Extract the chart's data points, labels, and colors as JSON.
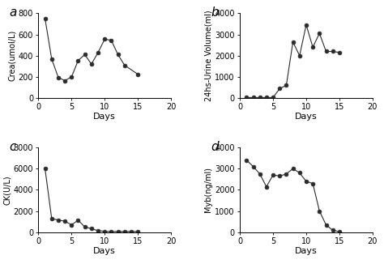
{
  "panel_a": {
    "label": "a",
    "x": [
      1,
      2,
      3,
      4,
      5,
      6,
      7,
      8,
      9,
      10,
      11,
      12,
      13,
      15
    ],
    "y": [
      750,
      370,
      195,
      165,
      200,
      355,
      410,
      320,
      430,
      555,
      545,
      410,
      310,
      225
    ],
    "ylabel": "Crea(umol/L)",
    "xlabel": "Days",
    "ylim": [
      0,
      800
    ],
    "xlim": [
      0,
      20
    ],
    "yticks": [
      0,
      200,
      400,
      600,
      800
    ],
    "xticks": [
      0,
      5,
      10,
      15,
      20
    ]
  },
  "panel_b": {
    "label": "b",
    "x": [
      1,
      2,
      3,
      4,
      5,
      6,
      7,
      8,
      9,
      10,
      11,
      12,
      13,
      14,
      15
    ],
    "y": [
      30,
      30,
      30,
      30,
      30,
      450,
      600,
      2650,
      2000,
      3450,
      2400,
      3050,
      2200,
      2200,
      2150
    ],
    "ylabel": "24hs-Urine Volume(ml)",
    "xlabel": "Days",
    "ylim": [
      0,
      4000
    ],
    "xlim": [
      0,
      20
    ],
    "yticks": [
      0,
      1000,
      2000,
      3000,
      4000
    ],
    "xticks": [
      0,
      5,
      10,
      15,
      20
    ]
  },
  "panel_c": {
    "label": "c",
    "x": [
      1,
      2,
      3,
      4,
      5,
      6,
      7,
      8,
      9,
      10,
      11,
      12,
      13,
      14,
      15
    ],
    "y": [
      6000,
      1300,
      1150,
      1050,
      700,
      1150,
      500,
      350,
      150,
      100,
      80,
      80,
      80,
      80,
      80
    ],
    "ylabel": "CK(U/L)",
    "xlabel": "Days",
    "ylim": [
      0,
      8000
    ],
    "xlim": [
      0,
      20
    ],
    "yticks": [
      0,
      2000,
      4000,
      6000,
      8000
    ],
    "xticks": [
      0,
      5,
      10,
      15,
      20
    ]
  },
  "panel_d": {
    "label": "d",
    "x": [
      1,
      2,
      3,
      4,
      5,
      6,
      7,
      8,
      9,
      10,
      11,
      12,
      13,
      14,
      15
    ],
    "y": [
      3400,
      3100,
      2750,
      2150,
      2700,
      2650,
      2750,
      3000,
      2800,
      2400,
      2300,
      1000,
      350,
      100,
      30
    ],
    "ylabel": "Myb(ng/ml)",
    "xlabel": "Days",
    "ylim": [
      0,
      4000
    ],
    "xlim": [
      0,
      20
    ],
    "yticks": [
      0,
      1000,
      2000,
      3000,
      4000
    ],
    "xticks": [
      0,
      5,
      10,
      15,
      20
    ]
  },
  "line_color": "#2b2b2b",
  "marker": "o",
  "marker_size": 3.5,
  "marker_face": "#2b2b2b",
  "background": "#ffffff",
  "ylabel_fontsize": 7,
  "xlabel_fontsize": 8,
  "tick_fontsize": 7,
  "panel_label_fontsize": 11
}
